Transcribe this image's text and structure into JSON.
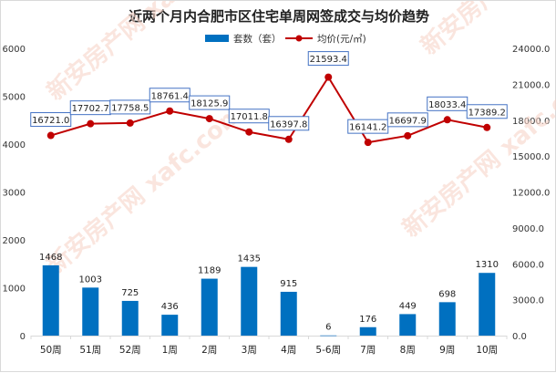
{
  "chart_data": {
    "type": "bar+line",
    "title": "近两个月内合肥市区住宅单周网签成交与均价趋势",
    "categories": [
      "50周",
      "51周",
      "52周",
      "1周",
      "2周",
      "3周",
      "4周",
      "5-6周",
      "7周",
      "8周",
      "9周",
      "10周"
    ],
    "series": [
      {
        "name": "套数（套）",
        "type": "bar",
        "axis": "left",
        "color": "#0070c0",
        "values": [
          1468,
          1003,
          725,
          436,
          1189,
          1435,
          915,
          6,
          176,
          449,
          698,
          1310
        ]
      },
      {
        "name": "均价(元/㎡)",
        "type": "line",
        "axis": "right",
        "color": "#c00000",
        "values": [
          16721.0,
          17702.7,
          17758.5,
          18761.4,
          18125.9,
          17011.8,
          16397.8,
          21593.4,
          16141.2,
          16697.9,
          18033.4,
          17389.2
        ]
      }
    ],
    "left_axis": {
      "ylim": [
        0,
        6000
      ],
      "ticks": [
        "0",
        "1000",
        "2000",
        "3000",
        "4000",
        "5000",
        "6000"
      ]
    },
    "right_axis": {
      "ylim": [
        0,
        24000
      ],
      "ticks": [
        "0.0",
        "3000.0",
        "6000.0",
        "9000.0",
        "12000.0",
        "15000.0",
        "18000.0",
        "21000.0",
        "24000.0"
      ]
    },
    "legend": {
      "placement": "top-center",
      "items": [
        "套数（套）",
        "均价(元/㎡)"
      ]
    },
    "watermark": "新安房产网 xafc.com"
  }
}
